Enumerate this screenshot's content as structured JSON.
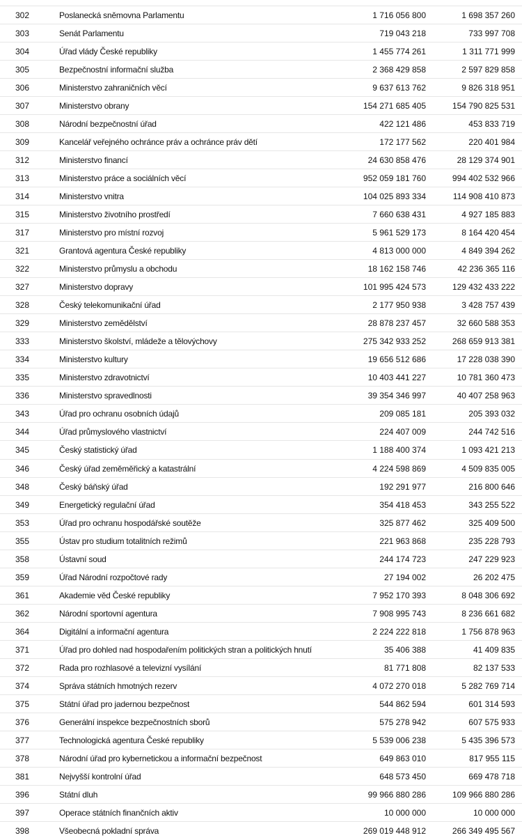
{
  "table": {
    "rows": [
      [
        "302",
        "Poslanecká sněmovna Parlamentu",
        "1 716 056 800",
        "1 698 357 260"
      ],
      [
        "303",
        "Senát Parlamentu",
        "719 043 218",
        "733 997 708"
      ],
      [
        "304",
        "Úřad vlády České republiky",
        "1 455 774 261",
        "1 311 771 999"
      ],
      [
        "305",
        "Bezpečnostní informační služba",
        "2 368 429 858",
        "2 597 829 858"
      ],
      [
        "306",
        "Ministerstvo zahraničních věcí",
        "9 637 613 762",
        "9 826 318 951"
      ],
      [
        "307",
        "Ministerstvo obrany",
        "154 271 685 405",
        "154 790 825 531"
      ],
      [
        "308",
        "Národní bezpečnostní úřad",
        "422 121 486",
        "453 833 719"
      ],
      [
        "309",
        "Kancelář veřejného ochránce práv a ochránce práv dětí",
        "172 177 562",
        "220 401 984"
      ],
      [
        "312",
        "Ministerstvo financí",
        "24 630 858 476",
        "28 129 374 901"
      ],
      [
        "313",
        "Ministerstvo práce a sociálních věcí",
        "952 059 181 760",
        "994 402 532 966"
      ],
      [
        "314",
        "Ministerstvo vnitra",
        "104 025 893 334",
        "114 908 410 873"
      ],
      [
        "315",
        "Ministerstvo životního prostředí",
        "7 660 638 431",
        "4 927 185 883"
      ],
      [
        "317",
        "Ministerstvo pro místní rozvoj",
        "5 961 529 173",
        "8 164 420 454"
      ],
      [
        "321",
        "Grantová agentura České republiky",
        "4 813 000 000",
        "4 849 394 262"
      ],
      [
        "322",
        "Ministerstvo průmyslu a obchodu",
        "18 162 158 746",
        "42 236 365 116"
      ],
      [
        "327",
        "Ministerstvo dopravy",
        "101 995 424 573",
        "129 432 433 222"
      ],
      [
        "328",
        "Český telekomunikační úřad",
        "2 177 950 938",
        "3 428 757 439"
      ],
      [
        "329",
        "Ministerstvo zemědělství",
        "28 878 237 457",
        "32 660 588 353"
      ],
      [
        "333",
        "Ministerstvo školství, mládeže a tělovýchovy",
        "275 342 933 252",
        "268 659 913 381"
      ],
      [
        "334",
        "Ministerstvo kultury",
        "19 656 512 686",
        "17 228 038 390"
      ],
      [
        "335",
        "Ministerstvo zdravotnictví",
        "10 403 441 227",
        "10 781 360 473"
      ],
      [
        "336",
        "Ministerstvo spravedlnosti",
        "39 354 346 997",
        "40 407 258 963"
      ],
      [
        "343",
        "Úřad pro ochranu osobních údajů",
        "209 085 181",
        "205 393 032"
      ],
      [
        "344",
        "Úřad průmyslového vlastnictví",
        "224 407 009",
        "244 742 516"
      ],
      [
        "345",
        "Český statistický úřad",
        "1 188 400 374",
        "1 093 421 213"
      ],
      [
        "346",
        "Český úřad zeměměřický a katastrální",
        "4 224 598 869",
        "4 509 835 005"
      ],
      [
        "348",
        "Český báňský úřad",
        "192 291 977",
        "216 800 646"
      ],
      [
        "349",
        "Energetický regulační úřad",
        "354 418 453",
        "343 255 522"
      ],
      [
        "353",
        "Úřad pro ochranu hospodářské soutěže",
        "325 877 462",
        "325 409 500"
      ],
      [
        "355",
        "Ústav pro studium totalitních režimů",
        "221 963 868",
        "235 228 793"
      ],
      [
        "358",
        "Ústavní soud",
        "244 174 723",
        "247 229 923"
      ],
      [
        "359",
        "Úřad Národní rozpočtové rady",
        "27 194 002",
        "26 202 475"
      ],
      [
        "361",
        "Akademie věd České republiky",
        "7 952 170 393",
        "8 048 306 692"
      ],
      [
        "362",
        "Národní sportovní agentura",
        "7 908 995 743",
        "8 236 661 682"
      ],
      [
        "364",
        "Digitální a informační agentura",
        "2 224 222 818",
        "1 756 878 963"
      ],
      [
        "371",
        "Úřad pro dohled nad hospodařením politických stran a politických hnutí",
        "35 406 388",
        "41 409 835"
      ],
      [
        "372",
        "Rada pro rozhlasové a televizní vysílání",
        "81 771 808",
        "82 137 533"
      ],
      [
        "374",
        "Správa státních hmotných rezerv",
        "4 072 270 018",
        "5 282 769 714"
      ],
      [
        "375",
        "Státní úřad pro jadernou bezpečnost",
        "544 862 594",
        "601 314 593"
      ],
      [
        "376",
        "Generální inspekce bezpečnostních sborů",
        "575 278 942",
        "607 575 933"
      ],
      [
        "377",
        "Technologická agentura České republiky",
        "5 539 006 238",
        "5 435 396 573"
      ],
      [
        "378",
        "Národní úřad pro kybernetickou a informační bezpečnost",
        "649 863 010",
        "817 955 115"
      ],
      [
        "381",
        "Nejvyšší kontrolní úřad",
        "648 573 450",
        "669 478 718"
      ],
      [
        "396",
        "Státní dluh",
        "99 966 880 286",
        "109 966 880 286"
      ],
      [
        "397",
        "Operace státních finančních aktiv",
        "10 000 000",
        "10 000 000"
      ],
      [
        "398",
        "Všeobecná pokladní správa",
        "269 019 448 912",
        "266 349 495 567"
      ]
    ]
  }
}
